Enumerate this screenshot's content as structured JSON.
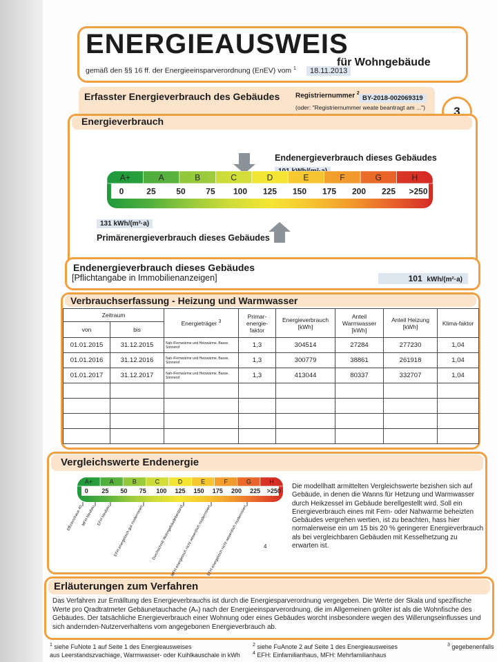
{
  "header": {
    "title": "ENERGIEAUSWEIS",
    "subtitle": "für Wohngebäude",
    "legal": "gemäß den §§ 16 ff. der Energieeinsparverordnung (EnEV) vom",
    "legal_mark": "1",
    "date": "18.11.2013"
  },
  "section": {
    "title": "Erfasster Energieverbrauch des Gebäudes",
    "reg_label": "Registriernummer",
    "reg_mark": "2",
    "reg_number": "BY-2018-002069319",
    "reg_note": "(oder: \"Registriernummer weate beantragt am ...\")",
    "page": "3"
  },
  "energieverbrauch": {
    "title": "Energieverbrauch",
    "classes": [
      "A+",
      "A",
      "B",
      "C",
      "D",
      "E",
      "F",
      "G",
      "H"
    ],
    "scale": [
      "0",
      "25",
      "50",
      "75",
      "100",
      "125",
      "150",
      "175",
      "200",
      "225",
      ">250"
    ],
    "end_label": "Endenergieverbrauch dieses Gebäudes",
    "end_value": "101 kWh/(m²·a)",
    "primary_value": "131 kWh/(m²·a)",
    "primary_label": "Primärenergieverbrauch dieses Gebäudes"
  },
  "pflicht": {
    "title": "Endenergieverbrauch dieses Gebäudes",
    "subtitle": "[Pflichtangabe in Immobilienanzeigen]",
    "value": "101",
    "unit": "kWh/(m²·a)"
  },
  "table": {
    "title": "Verbrauchserfassung - Heizung und Warmwasser",
    "headers": {
      "zeitraum": "Zeitraum",
      "von": "von",
      "bis": "bis",
      "traeger": "Energieträger",
      "traeger_mark": "3",
      "primar": "Primar-energie-faktor",
      "verbrauch": "Energieverbrauch [kWh]",
      "warmwasser": "Anteil Warmwasser [kWh]",
      "heizung": "Anteil Heizung [kWh]",
      "klima": "Klima-faktor"
    },
    "rows": [
      [
        "01.01.2015",
        "31.12.2015",
        "Nah-/Fernwärme und Heizwärme, Basse, Sonnerof",
        "1,3",
        "304514",
        "27284",
        "277230",
        "1,04"
      ],
      [
        "01.01.2016",
        "31.12.2016",
        "Nah-/Fernwärme und Heizwärme, Basse, Sonnerof",
        "1,3",
        "300779",
        "38861",
        "261918",
        "1,04"
      ],
      [
        "01.01.2017",
        "31.12.2017",
        "Nah-/Fernwärme und Heizwärme, Basse, Sonnerof",
        "1,3",
        "413044",
        "80337",
        "332707",
        "1,04"
      ]
    ]
  },
  "vergleich": {
    "title": "Vergleichswerte Endenergie",
    "classes": [
      "A+",
      "A",
      "B",
      "C",
      "D",
      "E",
      "F",
      "G",
      "H"
    ],
    "scale": [
      "0",
      "25",
      "50",
      "75",
      "100",
      "125",
      "150",
      "175",
      "200",
      "225",
      ">250"
    ],
    "references": [
      "Effizienzhaus 40",
      "MFH Neubau",
      "EFH Neubau",
      "EFH energetisch gut modernisiert",
      "Durchschnitt Wohngebäudebestand",
      "MFH energetisch nicht wesentlich modernisiert",
      "EFH energetisch nicht wesentlich modernisiert"
    ],
    "references_mark": "4",
    "text": "Die modellhatt armittelten Vergleichswerte bezishen sich auf Gebäude, in denen die Wanns für Hetzung und Warmwasser durch Heikzessel im Gebäude berellgestellt wird. Soll ein Energieverbrauch eines mit Fern- oder Nahwarme beheizten Gebäudes vergrehen wertien, ist zu beachten, hass hier normalerweise ein um 15 bis 20 % geringerer Energieverbrauch als bei vergleichbaren Gebäuden mit Kesselhetzung zu erwarten ist."
  },
  "erlaeuterung": {
    "title": "Erläuterungen zum Verfahren",
    "text": "Das Verfahren zur Emälltung des Energieverbrauchs ist durch die Energiesparverordnung vergegeben. Die Werte der Skala und spezifische Werte pro Qradtratmeter Gebäunetauchache (Aₙ) nach der Energieeinsparverordnung, die im Allgemeinen grölter ist als die Wohnfische des Gebäudes. Der tatsächliche Energieverbrauch einer Wohnung oder eines Gebäudes worcht insbesondere wegen des Willerungseinflusses und sich andernden-Nutzerverhaltens vom angegebonen Energieverbrauch ab."
  },
  "footnotes": [
    {
      "mark": "1",
      "text": "siehe FuNote 1 auf Seite 1 des Energieausweises"
    },
    {
      "mark": "2",
      "text": "siehe FuAnote 2 auf Seite 1 des Energieausweises"
    },
    {
      "mark": "3",
      "text": "gegebenenfalls"
    },
    {
      "mark": "",
      "text": "aus Leerstandszvachiage, Warmwasser- oder Kuihlkauschale in kWh"
    },
    {
      "mark": "4",
      "text": "EFH: Einfamilianhaus, MFH: Mehrfamilianhaus"
    }
  ]
}
